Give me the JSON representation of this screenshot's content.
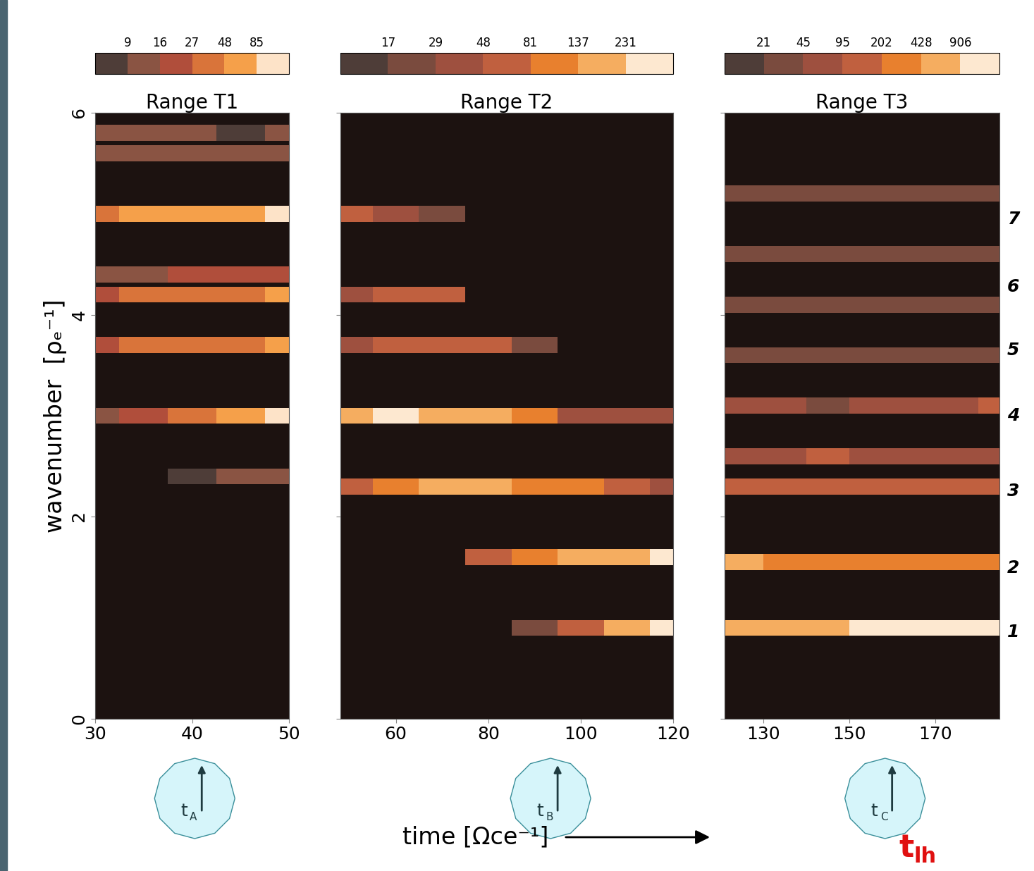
{
  "chart_data": [
    {
      "type": "heatmap",
      "title": "Range T1",
      "ylabel": "wavenumber  [ρₑ⁻¹]",
      "xlim": [
        30,
        50
      ],
      "xticks": [
        30,
        40,
        50
      ],
      "ylim": [
        0,
        6
      ],
      "yticks": [
        0,
        2,
        4,
        6
      ],
      "tick_labels": true,
      "colorbar": {
        "range": [
          5,
          150
        ],
        "ticks": [
          9,
          16,
          27,
          48,
          85
        ],
        "colors": [
          "#4e3d38",
          "#8a5443",
          "#b04e3b",
          "#d9743a",
          "#f5a04a",
          "#fde3c8"
        ]
      },
      "bands": [
        {
          "wavenumber": 5.0,
          "x": [
            30,
            35,
            40,
            45,
            50
          ],
          "values": [
            40,
            50,
            60,
            70,
            100
          ]
        },
        {
          "wavenumber": 4.2,
          "x": [
            30,
            35,
            40,
            45,
            50
          ],
          "values": [
            20,
            40,
            30,
            40,
            50
          ]
        },
        {
          "wavenumber": 4.4,
          "x": [
            30,
            35,
            40,
            45,
            50
          ],
          "values": [
            15,
            15,
            25,
            20,
            20
          ]
        },
        {
          "wavenumber": 3.7,
          "x": [
            30,
            35,
            40,
            45,
            50
          ],
          "values": [
            20,
            30,
            40,
            40,
            50
          ]
        },
        {
          "wavenumber": 3.0,
          "x": [
            30,
            35,
            40,
            45,
            50
          ],
          "values": [
            12,
            25,
            35,
            50,
            90
          ]
        },
        {
          "wavenumber": 5.6,
          "x": [
            30,
            35,
            40,
            45,
            50
          ],
          "values": [
            10,
            10,
            12,
            10,
            15
          ]
        },
        {
          "wavenumber": 5.8,
          "x": [
            30,
            35,
            40,
            45,
            50
          ],
          "values": [
            10,
            12,
            10,
            8,
            10
          ]
        },
        {
          "wavenumber": 2.4,
          "x": [
            30,
            35,
            40,
            45,
            50
          ],
          "values": [
            0,
            0,
            8,
            12,
            10
          ]
        }
      ],
      "event": {
        "x": 41,
        "label": "t",
        "sub": "A"
      }
    },
    {
      "type": "heatmap",
      "title": "Range T2",
      "xlabel": "time [Ωce⁻¹]",
      "xlim": [
        48,
        120
      ],
      "xticks": [
        60,
        80,
        100,
        120
      ],
      "ylim": [
        0,
        6
      ],
      "yticks": [
        0,
        2,
        4,
        6
      ],
      "tick_labels": "x",
      "colorbar": {
        "range": [
          10,
          400
        ],
        "ticks": [
          17,
          29,
          48,
          81,
          137,
          231
        ],
        "colors": [
          "#4e3d38",
          "#7a4b3e",
          "#9e503f",
          "#c0603f",
          "#e8802e",
          "#f5ad60",
          "#fde8d0"
        ]
      },
      "bands": [
        {
          "wavenumber": 5.0,
          "x": [
            50,
            60,
            70,
            80,
            90,
            100,
            110,
            120
          ],
          "values": [
            60,
            40,
            25,
            0,
            0,
            0,
            0,
            0
          ]
        },
        {
          "wavenumber": 4.2,
          "x": [
            50,
            60,
            70,
            80,
            90,
            100,
            110,
            120
          ],
          "values": [
            40,
            60,
            50,
            0,
            0,
            0,
            0,
            0
          ]
        },
        {
          "wavenumber": 3.7,
          "x": [
            50,
            60,
            70,
            80,
            90,
            100,
            110,
            120
          ],
          "values": [
            40,
            60,
            80,
            60,
            20,
            0,
            0,
            0
          ]
        },
        {
          "wavenumber": 3.0,
          "x": [
            50,
            60,
            70,
            80,
            90,
            100,
            110,
            120
          ],
          "values": [
            150,
            231,
            200,
            150,
            100,
            40,
            30,
            30
          ]
        },
        {
          "wavenumber": 2.3,
          "x": [
            50,
            60,
            70,
            80,
            90,
            100,
            110,
            120
          ],
          "values": [
            50,
            100,
            150,
            180,
            120,
            100,
            50,
            40
          ]
        },
        {
          "wavenumber": 1.6,
          "x": [
            50,
            60,
            70,
            80,
            90,
            100,
            110,
            120
          ],
          "values": [
            0,
            0,
            0,
            60,
            100,
            137,
            200,
            231
          ]
        },
        {
          "wavenumber": 0.9,
          "x": [
            50,
            60,
            70,
            80,
            90,
            100,
            110,
            120
          ],
          "values": [
            0,
            0,
            0,
            0,
            20,
            60,
            150,
            231
          ]
        }
      ],
      "event": {
        "x": 95,
        "label": "t",
        "sub": "B"
      }
    },
    {
      "type": "heatmap",
      "title": "Range T3",
      "xlim": [
        121,
        185
      ],
      "xticks": [
        130,
        150,
        170
      ],
      "ylim": [
        0,
        6
      ],
      "yticks": [
        0,
        2,
        4,
        6
      ],
      "tick_labels": "x",
      "colorbar": {
        "range": [
          10,
          1500
        ],
        "ticks": [
          21,
          45,
          95,
          202,
          428,
          906
        ],
        "colors": [
          "#4e3d38",
          "#7a4b3e",
          "#9e503f",
          "#c0603f",
          "#e8802e",
          "#f5ad60",
          "#fde8d0"
        ]
      },
      "bands": [
        {
          "wavenumber": 0.9,
          "x": [
            125,
            135,
            145,
            155,
            165,
            175,
            185
          ],
          "values": [
            600,
            700,
            800,
            906,
            906,
            906,
            906
          ]
        },
        {
          "wavenumber": 1.55,
          "x": [
            125,
            135,
            145,
            155,
            165,
            175,
            185
          ],
          "values": [
            428,
            300,
            250,
            300,
            300,
            400,
            350
          ]
        },
        {
          "wavenumber": 2.3,
          "x": [
            125,
            135,
            145,
            155,
            165,
            175,
            185
          ],
          "values": [
            200,
            150,
            100,
            120,
            150,
            150,
            100
          ]
        },
        {
          "wavenumber": 2.6,
          "x": [
            125,
            135,
            145,
            155,
            165,
            175,
            185
          ],
          "values": [
            60,
            80,
            95,
            60,
            50,
            60,
            50
          ]
        },
        {
          "wavenumber": 3.1,
          "x": [
            125,
            135,
            145,
            155,
            165,
            175,
            185
          ],
          "values": [
            60,
            50,
            40,
            45,
            50,
            60,
            95
          ]
        },
        {
          "wavenumber": 3.6,
          "x": [
            125,
            135,
            145,
            155,
            165,
            175,
            185
          ],
          "values": [
            30,
            40,
            30,
            25,
            30,
            40,
            30
          ]
        },
        {
          "wavenumber": 4.1,
          "x": [
            125,
            135,
            145,
            155,
            165,
            175,
            185
          ],
          "values": [
            25,
            30,
            30,
            40,
            25,
            30,
            25
          ]
        },
        {
          "wavenumber": 4.6,
          "x": [
            125,
            135,
            145,
            155,
            165,
            175,
            185
          ],
          "values": [
            25,
            25,
            30,
            25,
            30,
            25,
            25
          ]
        },
        {
          "wavenumber": 5.2,
          "x": [
            125,
            135,
            145,
            155,
            165,
            175,
            185
          ],
          "values": [
            21,
            25,
            30,
            25,
            25,
            30,
            25
          ]
        }
      ],
      "mode_labels": [
        {
          "wavenumber": 0.86,
          "label": "1"
        },
        {
          "wavenumber": 1.49,
          "label": "2"
        },
        {
          "wavenumber": 2.25,
          "label": "3"
        },
        {
          "wavenumber": 3.0,
          "label": "4"
        },
        {
          "wavenumber": 3.65,
          "label": "5"
        },
        {
          "wavenumber": 4.28,
          "label": "6"
        },
        {
          "wavenumber": 4.95,
          "label": "7"
        }
      ],
      "event": {
        "x": 160,
        "label": "t",
        "sub": "C"
      },
      "event_note": {
        "label": "t",
        "sub": "lh"
      }
    }
  ]
}
